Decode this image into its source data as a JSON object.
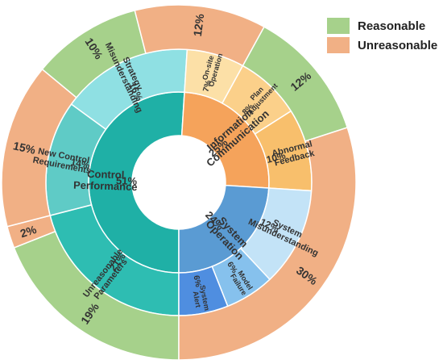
{
  "legend": {
    "reasonable": {
      "label": "Reasonable",
      "color": "#a6d18b"
    },
    "unreasonable": {
      "label": "Unreasonable",
      "color": "#f1b085"
    }
  },
  "chart_data": {
    "type": "sunburst",
    "title": "",
    "inner": [
      {
        "label": "Control Performance",
        "value": "51%",
        "color": "#1fb0a6"
      },
      {
        "label": "Information Communication",
        "value": "25%",
        "color": "#f5a35b"
      },
      {
        "label": "System Operation",
        "value": "24%",
        "color": "#5a9bd3"
      }
    ],
    "middle": [
      {
        "label": "Unreasonable Parameters",
        "value": "21%",
        "parent": "Control Performance",
        "color": "#2ebdb2"
      },
      {
        "label": "New Control Requirements",
        "value": "14%",
        "parent": "Control Performance",
        "color": "#5fcbc6"
      },
      {
        "label": "Strategy Misunderstanding",
        "value": "16%",
        "parent": "Control Performance",
        "color": "#8fe0e3"
      },
      {
        "label": "On-site Operation",
        "value": "7%",
        "parent": "Information Communication",
        "color": "#fce0a7"
      },
      {
        "label": "Plan Adjustment",
        "value": "8%",
        "parent": "Information Communication",
        "color": "#fbd08a"
      },
      {
        "label": "Abnormal Feedback",
        "value": "10%",
        "parent": "Information Communication",
        "color": "#f8bf6c"
      },
      {
        "label": "System Misunderstanding",
        "value": "12%",
        "parent": "System Operation",
        "color": "#c3e3f7"
      },
      {
        "label": "Model Failure",
        "value": "6%",
        "parent": "System Operation",
        "color": "#86c1ed"
      },
      {
        "label": "System Alert",
        "value": "6%",
        "parent": "System Operation",
        "color": "#4f8ee0"
      }
    ],
    "outer": [
      {
        "value": "19%",
        "category": "Reasonable"
      },
      {
        "value": "2%",
        "category": "Unreasonable"
      },
      {
        "value": "15%",
        "category": "Unreasonable"
      },
      {
        "value": "10%",
        "category": "Reasonable"
      },
      {
        "value": "12%",
        "category": "Unreasonable"
      },
      {
        "value": "12%",
        "category": "Reasonable"
      },
      {
        "value": "30%",
        "category": "Unreasonable"
      }
    ]
  }
}
